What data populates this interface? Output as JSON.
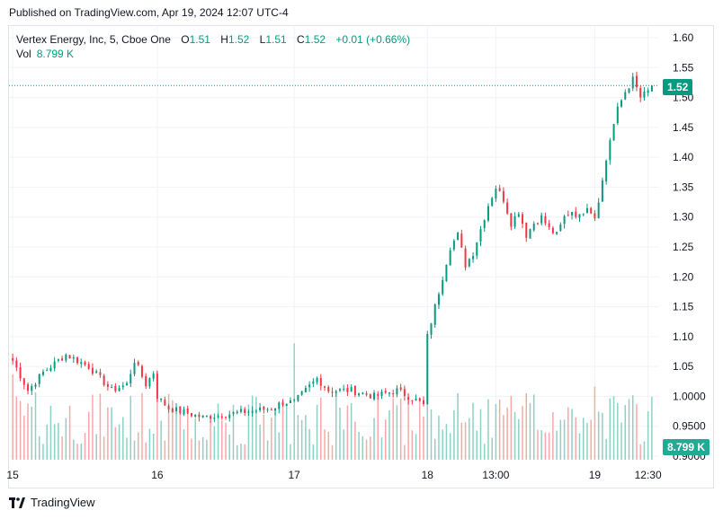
{
  "published": "Published on TradingView.com, Apr 19, 2024 12:07 UTC-4",
  "legend": {
    "symbol": "Vertex Energy, Inc, 5, Cboe One",
    "o_label": "O",
    "o": "1.51",
    "h_label": "H",
    "h": "1.52",
    "l_label": "L",
    "l": "1.51",
    "c_label": "C",
    "c": "1.52",
    "change": "+0.01 (+0.66%)",
    "vol_label": "Vol",
    "vol": "8.799 K"
  },
  "badges": {
    "price": "1.52",
    "volume": "8.799 K"
  },
  "footer": {
    "brand": "TradingView"
  },
  "colors": {
    "up": "#089981",
    "down": "#f23645",
    "up_volume": "#8ed1c4",
    "down_volume": "#f7a9a7",
    "grid": "#f0f3fa"
  },
  "chart_data": {
    "type": "candlestick",
    "title": "Vertex Energy, Inc, 5, Cboe One",
    "price_axis": {
      "ticks": [
        "1.60",
        "1.55",
        "1.50",
        "1.45",
        "1.40",
        "1.35",
        "1.30",
        "1.25",
        "1.20",
        "1.15",
        "1.10",
        "1.05",
        "1.0000",
        "0.9500",
        "0.9000"
      ],
      "ylim": [
        0.9,
        1.6
      ]
    },
    "time_axis": {
      "ticks": [
        "15",
        "16",
        "17",
        "18",
        "13:00",
        "19",
        "12:30"
      ]
    },
    "last_price": 1.52,
    "last_volume": "8.799 K",
    "segments": [
      {
        "label": "Apr 15",
        "bars": 38,
        "path": [
          [
            0,
            1.06
          ],
          [
            4,
            1.01
          ],
          [
            8,
            1.04
          ],
          [
            14,
            1.07
          ],
          [
            20,
            1.05
          ],
          [
            26,
            1.01
          ],
          [
            30,
            1.02
          ],
          [
            32,
            1.06
          ],
          [
            35,
            1.02
          ],
          [
            38,
            1.05
          ]
        ]
      },
      {
        "label": "Apr 16",
        "bars": 36,
        "path": [
          [
            0,
            1.0
          ],
          [
            3,
            0.98
          ],
          [
            6,
            0.975
          ],
          [
            9,
            0.97
          ],
          [
            12,
            0.965
          ],
          [
            18,
            0.97
          ],
          [
            24,
            0.975
          ],
          [
            30,
            0.98
          ],
          [
            33,
            0.99
          ],
          [
            36,
            0.99
          ]
        ]
      },
      {
        "label": "Apr 17",
        "bars": 35,
        "path": [
          [
            0,
            0.99
          ],
          [
            3,
            1.01
          ],
          [
            6,
            1.03
          ],
          [
            9,
            1.01
          ],
          [
            15,
            1.01
          ],
          [
            21,
            1.0
          ],
          [
            27,
            1.01
          ],
          [
            30,
            1.0
          ],
          [
            33,
            0.99
          ],
          [
            35,
            0.98
          ]
        ]
      },
      {
        "label": "Apr 18",
        "bars": 44,
        "path": [
          [
            0,
            1.1
          ],
          [
            2,
            1.15
          ],
          [
            4,
            1.2
          ],
          [
            6,
            1.25
          ],
          [
            8,
            1.27
          ],
          [
            10,
            1.22
          ],
          [
            12,
            1.24
          ],
          [
            14,
            1.28
          ],
          [
            16,
            1.32
          ],
          [
            18,
            1.35
          ],
          [
            20,
            1.33
          ],
          [
            22,
            1.29
          ],
          [
            24,
            1.31
          ],
          [
            26,
            1.27
          ],
          [
            28,
            1.29
          ],
          [
            30,
            1.3
          ],
          [
            32,
            1.28
          ],
          [
            34,
            1.27
          ],
          [
            36,
            1.3
          ],
          [
            38,
            1.31
          ],
          [
            40,
            1.3
          ],
          [
            42,
            1.32
          ],
          [
            44,
            1.3
          ]
        ]
      },
      {
        "label": "Apr 19",
        "bars": 16,
        "path": [
          [
            0,
            1.3
          ],
          [
            2,
            1.36
          ],
          [
            4,
            1.43
          ],
          [
            6,
            1.48
          ],
          [
            8,
            1.51
          ],
          [
            10,
            1.53
          ],
          [
            12,
            1.5
          ],
          [
            14,
            1.51
          ],
          [
            16,
            1.52
          ]
        ]
      }
    ]
  }
}
